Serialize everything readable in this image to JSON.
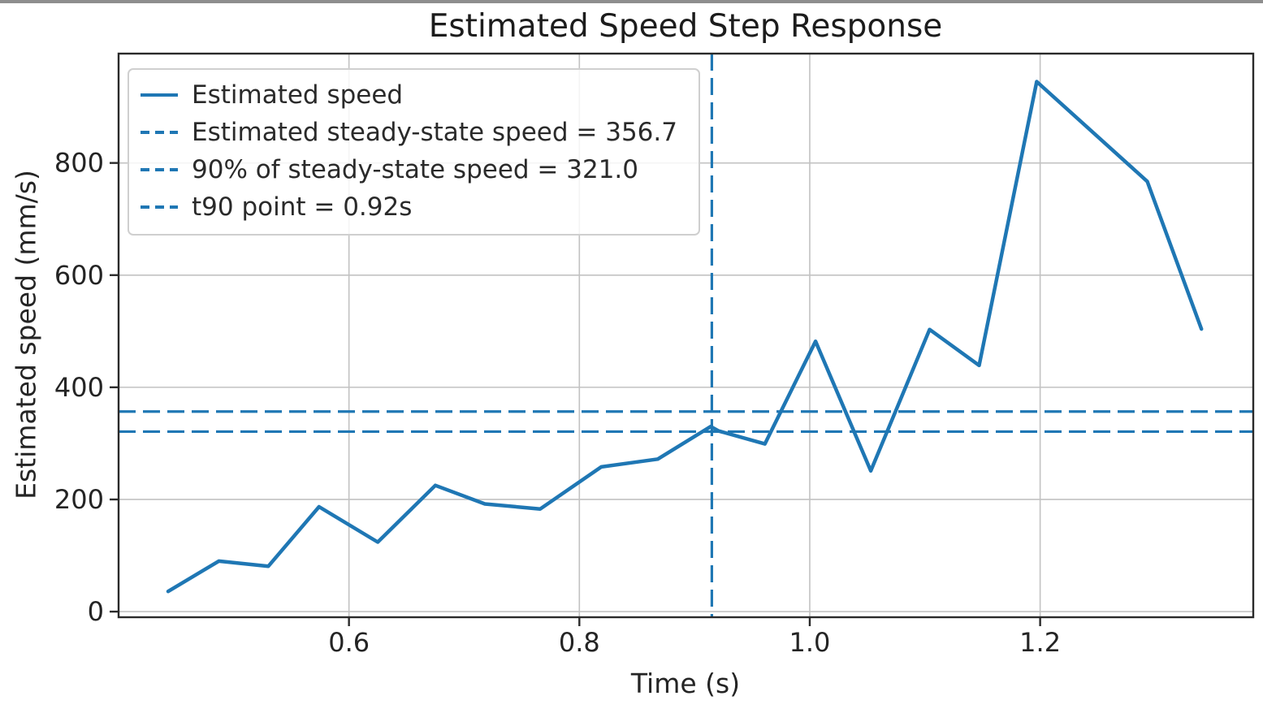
{
  "window": {
    "top_edge_color": "#8e8e8e"
  },
  "chart": {
    "title": "Estimated Speed Step Response",
    "xlabel": "Time (s)",
    "ylabel": "Estimated speed (mm/s)"
  },
  "legend": {
    "items": [
      {
        "label": "Estimated speed",
        "style": "solid"
      },
      {
        "label": "Estimated steady-state speed = 356.7",
        "style": "dashed"
      },
      {
        "label": "90% of steady-state speed = 321.0",
        "style": "dashed"
      },
      {
        "label": "t90 point = 0.92s",
        "style": "dashed"
      }
    ]
  },
  "chart_data": {
    "type": "line",
    "title": "Estimated Speed Step Response",
    "xlabel": "Time (s)",
    "ylabel": "Estimated speed (mm/s)",
    "xlim": [
      0.4,
      1.385
    ],
    "ylim": [
      -10,
      995
    ],
    "xticks": [
      0.6,
      0.8,
      1.0,
      1.2
    ],
    "yticks": [
      0,
      200,
      400,
      600,
      800
    ],
    "grid": true,
    "legend_position": "upper left",
    "colors": {
      "line": "#1f77b4",
      "grid": "#c2c2c2",
      "spine": "#2a2a2a",
      "text": "#242424"
    },
    "series": [
      {
        "name": "Estimated speed",
        "style": "solid",
        "x": [
          0.443,
          0.487,
          0.53,
          0.574,
          0.625,
          0.675,
          0.718,
          0.766,
          0.819,
          0.868,
          0.914,
          0.921,
          0.961,
          1.005,
          1.053,
          1.104,
          1.147,
          1.197,
          1.293,
          1.34
        ],
        "y": [
          36,
          90,
          81,
          187,
          124,
          225,
          192,
          183,
          258,
          272,
          330,
          322,
          299,
          482,
          251,
          503,
          439,
          945,
          767,
          504
        ]
      }
    ],
    "hlines": [
      {
        "name": "Estimated steady-state speed",
        "y": 356.7
      },
      {
        "name": "90% of steady-state speed",
        "y": 321.0
      }
    ],
    "vlines": [
      {
        "name": "t90 point",
        "x": 0.915,
        "label": "0.92s"
      }
    ]
  }
}
